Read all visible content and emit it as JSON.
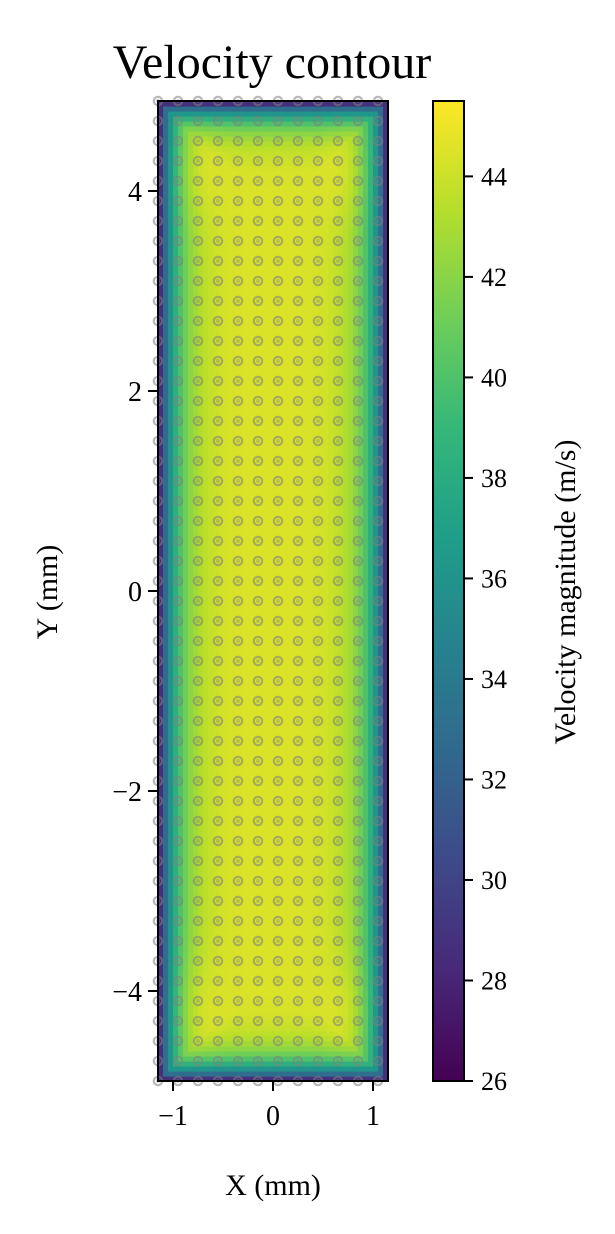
{
  "chart_data": {
    "type": "heatmap",
    "title": "Velocity contour",
    "xlabel": "X (mm)",
    "ylabel": "Y (mm)",
    "xlim": [
      -1.15,
      1.15
    ],
    "ylim": [
      -4.9,
      4.9
    ],
    "x_ticks": [
      -1,
      0,
      1
    ],
    "x_tick_labels": [
      "−1",
      "0",
      "1"
    ],
    "y_ticks": [
      -4,
      -2,
      0,
      2,
      4
    ],
    "y_tick_labels": [
      "−4",
      "−2",
      "0",
      "2",
      "4"
    ],
    "field": {
      "colormap": "viridis",
      "core_value": 44.5,
      "wall_value": 26,
      "hotspot_value": 45.5,
      "half_width_mm": 1.15,
      "half_height_mm": 4.9,
      "description_of_profile": "plateau ~44 in interior, falling toward ~26 at the walls"
    },
    "markers": {
      "x_start": -1.15,
      "x_step": 0.2,
      "x_count": 12,
      "y_start": -4.9,
      "y_step": 0.2,
      "y_count": 50,
      "color": "#808080",
      "style": "hollow-circle"
    },
    "colorbar": {
      "label": "Velocity magnitude (m/s)",
      "vmin": 26,
      "vmax": 45.5,
      "ticks": [
        26,
        28,
        30,
        32,
        34,
        36,
        38,
        40,
        42,
        44
      ],
      "tick_labels": [
        "26",
        "28",
        "30",
        "32",
        "34",
        "36",
        "38",
        "40",
        "42",
        "44"
      ]
    },
    "grid": false
  }
}
